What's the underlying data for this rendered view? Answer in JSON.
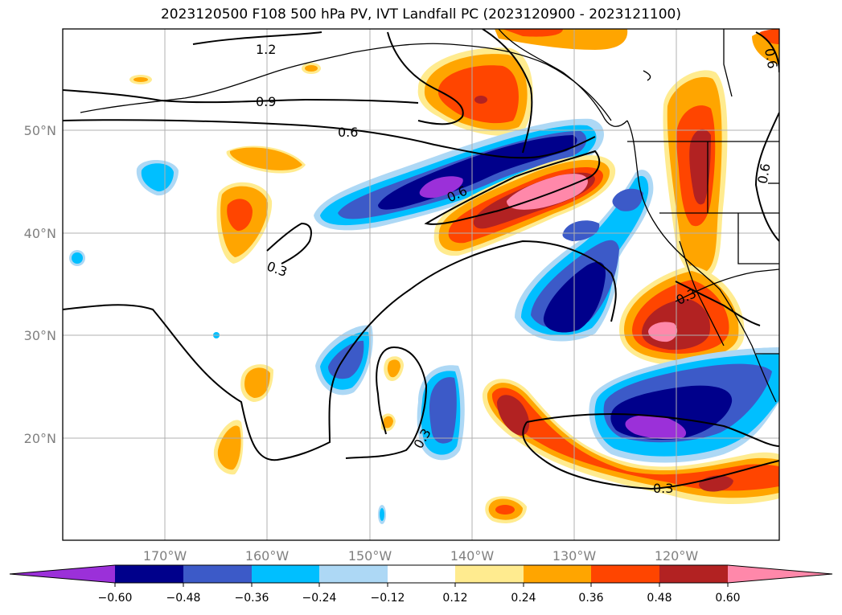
{
  "title": "2023120500 F108 500 hPa PV, IVT Landfall PC (2023120900 - 2023121100)",
  "colors": {
    "m060": "#9b30d9",
    "m048": "#00008b",
    "m036": "#3c5ac8",
    "m024": "#00bfff",
    "m012": "#add8f5",
    "zero": "#ffffff",
    "p012": "#ffeb8f",
    "p024": "#ffa500",
    "p036": "#ff4500",
    "p048": "#b22222",
    "p060": "#ff88aa"
  },
  "map": {
    "lon_ticks": [
      "170°W",
      "160°W",
      "150°W",
      "140°W",
      "130°W",
      "120°W"
    ],
    "lat_ticks": [
      "50°N",
      "40°N",
      "30°N",
      "20°N"
    ],
    "contour_labels": [
      "1.2",
      "0.9",
      "0.6",
      "0.6",
      "0.3",
      "0.3",
      "0.3",
      "0.3",
      "0.6",
      "0.6"
    ]
  },
  "colorbar": {
    "ticks": [
      "−0.60",
      "−0.48",
      "−0.36",
      "−0.24",
      "−0.12",
      "0.12",
      "0.24",
      "0.36",
      "0.48",
      "0.60"
    ]
  }
}
